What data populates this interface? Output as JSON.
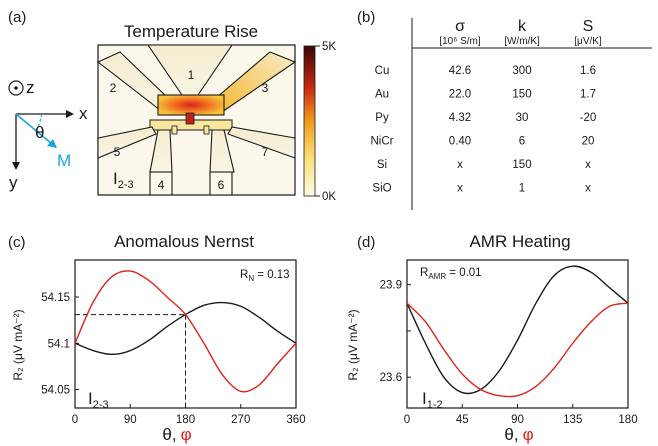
{
  "panels": {
    "a": {
      "label": "(a)",
      "title": "Temperature Rise",
      "colorbar": {
        "max_label": "5K",
        "min_label": "0K"
      },
      "contacts": [
        "1",
        "2",
        "3",
        "4",
        "5",
        "6",
        "7"
      ],
      "axes": {
        "z": "z",
        "x": "x",
        "y": "y",
        "theta": "θ",
        "m": "M"
      },
      "probe": {
        "main": "I",
        "sub": "2-3"
      },
      "colors": {
        "hot": "#e83a1a",
        "warm": "#f5c12e",
        "pad": "#f4ecd3",
        "accent": "#1aa6d8"
      }
    },
    "b": {
      "label": "(b)",
      "headers": [
        {
          "symbol": "σ",
          "unit": "[10⁶ S/m]"
        },
        {
          "symbol": "k",
          "unit": "[W/m/K]"
        },
        {
          "symbol": "S",
          "unit": "[μV/K]"
        }
      ],
      "rows": [
        {
          "material": "Cu",
          "values": [
            "42.6",
            "300",
            "1.6"
          ]
        },
        {
          "material": "Au",
          "values": [
            "22.0",
            "150",
            "1.7"
          ]
        },
        {
          "material": "Py",
          "values": [
            "4.32",
            "30",
            "-20"
          ]
        },
        {
          "material": "NiCr",
          "values": [
            "0.40",
            "6",
            "20"
          ]
        },
        {
          "material": "Si",
          "values": [
            "x",
            "150",
            "x"
          ]
        },
        {
          "material": "SiO",
          "values": [
            "x",
            "1",
            "x"
          ]
        }
      ]
    },
    "c": {
      "label": "(c)",
      "title": "Anomalous Nernst",
      "ylabel": "R₂ (μV mA⁻²)",
      "xlabel_theta": "θ,",
      "xlabel_phi": "φ",
      "annotation": {
        "main": "R",
        "sub": "N",
        "rest": " = 0.13"
      },
      "probe": {
        "main": "I",
        "sub": "2-3"
      }
    },
    "d": {
      "label": "(d)",
      "title": "AMR Heating",
      "ylabel": "R₂ (μV mA⁻²)",
      "xlabel_theta": "θ,",
      "xlabel_phi": "φ",
      "annotation": {
        "main": "R",
        "sub": "AMR",
        "rest": " = 0.01"
      },
      "probe": {
        "main": "I",
        "sub": "1-2"
      }
    }
  },
  "chart_data": [
    {
      "type": "line",
      "title": "Anomalous Nernst",
      "xlabel": "θ, φ",
      "ylabel": "R₂ (μV mA⁻²)",
      "xlim": [
        0,
        360
      ],
      "ylim": [
        54.03,
        54.19
      ],
      "xticks": [
        0,
        90,
        180,
        270,
        360
      ],
      "yticks": [
        54.05,
        54.1,
        54.15
      ],
      "ytick_labels": [
        "54.05",
        "54.1",
        "54.15"
      ],
      "series": [
        {
          "color": "#1a1a1a",
          "x": [
            0,
            30,
            60,
            90,
            120,
            150,
            180,
            210,
            240,
            270,
            300,
            330,
            360
          ],
          "y": [
            54.1,
            54.092,
            54.088,
            54.092,
            54.103,
            54.118,
            54.131,
            54.141,
            54.144,
            54.14,
            54.128,
            54.113,
            54.1
          ]
        },
        {
          "color": "#e0221b",
          "x": [
            0,
            30,
            60,
            90,
            120,
            150,
            180,
            210,
            240,
            270,
            300,
            330,
            360
          ],
          "y": [
            54.1,
            54.145,
            54.172,
            54.178,
            54.168,
            54.15,
            54.131,
            54.1,
            54.066,
            54.048,
            54.055,
            54.078,
            54.1
          ]
        }
      ],
      "guide": {
        "x": 180,
        "y": 54.131
      }
    },
    {
      "type": "line",
      "title": "AMR Heating",
      "xlabel": "θ, φ",
      "ylabel": "R₂ (μV mA⁻²)",
      "xlim": [
        0,
        180
      ],
      "ylim": [
        23.5,
        23.98
      ],
      "xticks": [
        0,
        45,
        90,
        135,
        180
      ],
      "yticks": [
        23.6,
        23.75,
        23.9
      ],
      "ytick_labels": [
        "23.6",
        "",
        "23.9"
      ],
      "series": [
        {
          "color": "#1a1a1a",
          "x": [
            0,
            15,
            30,
            45,
            60,
            75,
            90,
            105,
            120,
            135,
            150,
            165,
            180
          ],
          "y": [
            23.84,
            23.71,
            23.6,
            23.55,
            23.56,
            23.62,
            23.72,
            23.84,
            23.93,
            23.96,
            23.94,
            23.89,
            23.84
          ]
        },
        {
          "color": "#e0221b",
          "x": [
            0,
            15,
            30,
            45,
            60,
            75,
            90,
            105,
            120,
            135,
            150,
            165,
            180
          ],
          "y": [
            23.84,
            23.78,
            23.69,
            23.61,
            23.56,
            23.54,
            23.54,
            23.57,
            23.63,
            23.71,
            23.78,
            23.83,
            23.84
          ]
        }
      ]
    }
  ]
}
